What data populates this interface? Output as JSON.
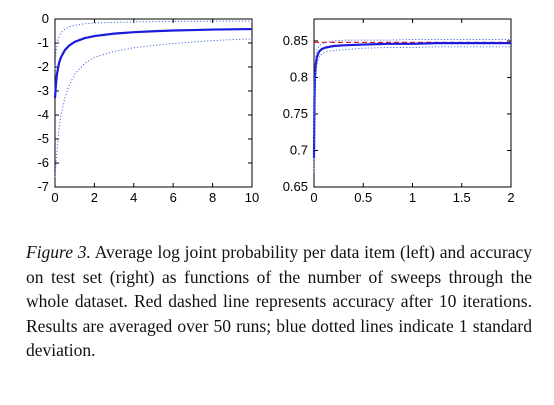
{
  "caption": {
    "label": "Figure 3.",
    "text": "Average log joint probability per data item (left) and accuracy on test set (right) as functions of the number of sweeps through the whole dataset. Red dashed line represents accuracy after 10 iterations. Results are averaged over 50 runs; blue dotted lines indicate 1 standard deviation."
  },
  "chart_data": [
    {
      "type": "line",
      "title": "",
      "xlabel": "",
      "ylabel": "",
      "xlim": [
        0,
        10
      ],
      "ylim": [
        -7,
        0
      ],
      "xticks": [
        "0",
        "2",
        "4",
        "6",
        "8",
        "10"
      ],
      "yticks": [
        "0",
        "-1",
        "-2",
        "-3",
        "-4",
        "-5",
        "-6",
        "-7"
      ],
      "grid": false,
      "x": [
        0,
        0.05,
        0.1,
        0.2,
        0.3,
        0.5,
        0.7,
        1,
        1.5,
        2,
        3,
        4,
        5,
        6,
        7,
        8,
        9,
        10
      ],
      "series": [
        {
          "style": "solid",
          "color": "#1a1adc",
          "values": [
            -3.3,
            -2.7,
            -2.3,
            -1.85,
            -1.6,
            -1.3,
            -1.12,
            -0.95,
            -0.8,
            -0.71,
            -0.61,
            -0.55,
            -0.51,
            -0.48,
            -0.46,
            -0.44,
            -0.43,
            -0.42
          ]
        },
        {
          "style": "dotted",
          "color": "#4a6ae8",
          "values": [
            -2.1,
            -1.4,
            -1.05,
            -0.75,
            -0.58,
            -0.42,
            -0.33,
            -0.26,
            -0.2,
            -0.17,
            -0.14,
            -0.12,
            -0.11,
            -0.1,
            -0.1,
            -0.09,
            -0.09,
            -0.09
          ]
        },
        {
          "style": "dotted",
          "color": "#4a6ae8",
          "values": [
            -6.6,
            -6.0,
            -5.5,
            -4.6,
            -4.0,
            -3.3,
            -2.8,
            -2.3,
            -1.85,
            -1.6,
            -1.35,
            -1.2,
            -1.1,
            -1.02,
            -0.96,
            -0.9,
            -0.86,
            -0.83
          ]
        }
      ]
    },
    {
      "type": "line",
      "title": "",
      "xlabel": "",
      "ylabel": "",
      "xlim": [
        0,
        2
      ],
      "ylim": [
        0.65,
        0.88
      ],
      "xticks": [
        "0",
        "0.5",
        "1",
        "1.5",
        "2"
      ],
      "yticks": [
        "0.85",
        "0.8",
        "0.75",
        "0.7",
        "0.65"
      ],
      "grid": false,
      "reference_line": {
        "style": "dashed",
        "color": "#e02020",
        "y": 0.848
      },
      "x": [
        0,
        0.005,
        0.01,
        0.02,
        0.03,
        0.05,
        0.08,
        0.12,
        0.2,
        0.3,
        0.5,
        0.75,
        1,
        1.25,
        1.5,
        1.75,
        2
      ],
      "series": [
        {
          "style": "solid",
          "color": "#1a1adc",
          "values": [
            0.69,
            0.77,
            0.8,
            0.82,
            0.828,
            0.835,
            0.839,
            0.841,
            0.843,
            0.844,
            0.845,
            0.846,
            0.846,
            0.847,
            0.847,
            0.847,
            0.847
          ]
        },
        {
          "style": "dotted",
          "color": "#4a6ae8",
          "values": [
            0.71,
            0.79,
            0.815,
            0.832,
            0.838,
            0.843,
            0.846,
            0.848,
            0.85,
            0.851,
            0.851,
            0.851,
            0.852,
            0.852,
            0.852,
            0.852,
            0.852
          ]
        },
        {
          "style": "dotted",
          "color": "#4a6ae8",
          "values": [
            0.67,
            0.75,
            0.785,
            0.808,
            0.818,
            0.827,
            0.832,
            0.835,
            0.837,
            0.838,
            0.84,
            0.841,
            0.841,
            0.842,
            0.842,
            0.842,
            0.842
          ]
        }
      ]
    }
  ]
}
